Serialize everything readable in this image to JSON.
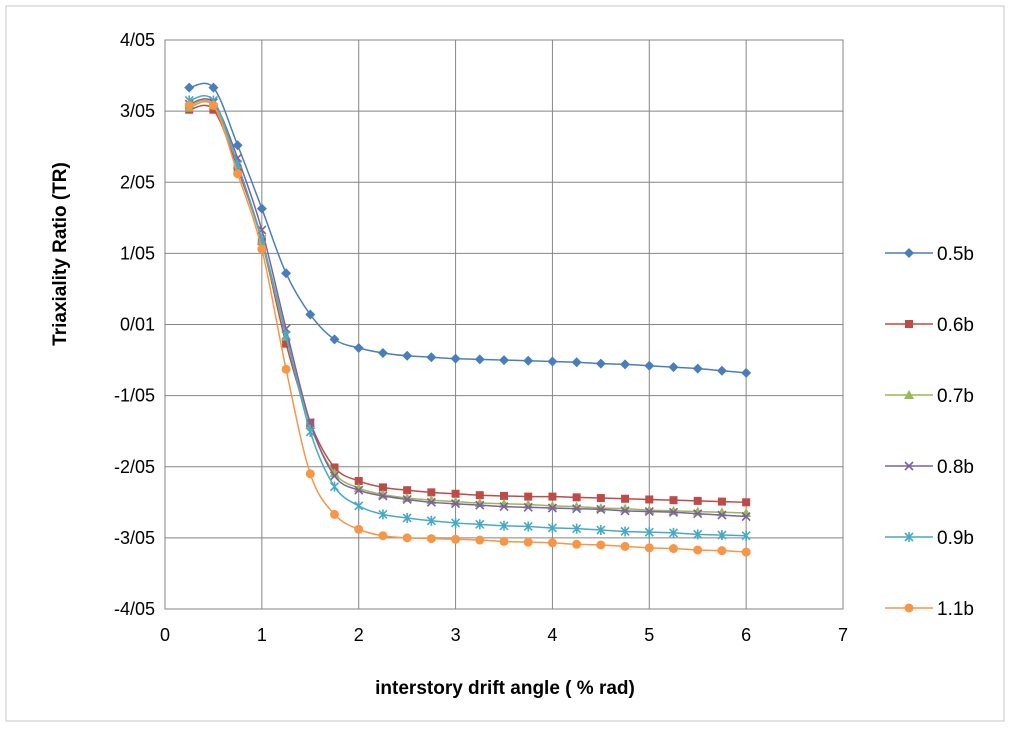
{
  "chart_data": {
    "type": "line",
    "title": "",
    "xlabel": "interstory drift angle ( % rad)",
    "ylabel": "Triaxiality Ratio (TR)",
    "xlim": [
      0,
      7
    ],
    "ylim": [
      -4,
      4
    ],
    "x_ticks": [
      0,
      1,
      2,
      3,
      4,
      5,
      6,
      7
    ],
    "y_ticks": [
      4,
      3,
      2,
      1,
      0,
      -1,
      -2,
      -3,
      -4
    ],
    "x_tick_labels": [
      "0",
      "1",
      "2",
      "3",
      "4",
      "5",
      "6",
      "7"
    ],
    "y_tick_labels": [
      "4/05",
      "3/05",
      "2/05",
      "1/05",
      "0/01",
      "-1/05",
      "-2/05",
      "-3/05",
      "-4/05"
    ],
    "grid": true,
    "legend_position": "right",
    "x": [
      0.25,
      0.5,
      0.75,
      1,
      1.25,
      1.5,
      1.75,
      2,
      2.25,
      2.5,
      2.75,
      3,
      3.25,
      3.5,
      3.75,
      4,
      4.25,
      4.5,
      4.75,
      5,
      5.25,
      5.5,
      5.75,
      6
    ],
    "series": [
      {
        "name": "0.5b",
        "color": "#4A7EBB",
        "marker": "diamond",
        "values": [
          3.33,
          3.33,
          2.52,
          1.63,
          0.72,
          0.14,
          -0.21,
          -0.33,
          -0.4,
          -0.44,
          -0.46,
          -0.48,
          -0.49,
          -0.5,
          -0.51,
          -0.52,
          -0.53,
          -0.55,
          -0.56,
          -0.58,
          -0.6,
          -0.62,
          -0.65,
          -0.68
        ]
      },
      {
        "name": "0.6b",
        "color": "#BE4B48",
        "marker": "square",
        "values": [
          3.02,
          3.02,
          2.19,
          1.17,
          -0.27,
          -1.38,
          -2.01,
          -2.2,
          -2.29,
          -2.33,
          -2.36,
          -2.38,
          -2.4,
          -2.41,
          -2.42,
          -2.42,
          -2.43,
          -2.44,
          -2.45,
          -2.46,
          -2.47,
          -2.48,
          -2.49,
          -2.5
        ]
      },
      {
        "name": "0.7b",
        "color": "#98B954",
        "marker": "triangle",
        "values": [
          3.05,
          3.08,
          2.25,
          1.18,
          -0.17,
          -1.41,
          -2.09,
          -2.3,
          -2.39,
          -2.44,
          -2.47,
          -2.49,
          -2.51,
          -2.52,
          -2.53,
          -2.55,
          -2.56,
          -2.58,
          -2.59,
          -2.61,
          -2.62,
          -2.63,
          -2.64,
          -2.65
        ]
      },
      {
        "name": "0.8b",
        "color": "#7D60A0",
        "marker": "x",
        "values": [
          3.1,
          3.12,
          2.34,
          1.33,
          -0.06,
          -1.38,
          -2.13,
          -2.33,
          -2.41,
          -2.46,
          -2.5,
          -2.52,
          -2.54,
          -2.56,
          -2.57,
          -2.58,
          -2.59,
          -2.6,
          -2.62,
          -2.63,
          -2.64,
          -2.66,
          -2.68,
          -2.7
        ]
      },
      {
        "name": "0.9b",
        "color": "#46AAC5",
        "marker": "asterisk",
        "values": [
          3.15,
          3.15,
          2.25,
          1.2,
          -0.15,
          -1.51,
          -2.28,
          -2.55,
          -2.67,
          -2.72,
          -2.76,
          -2.79,
          -2.81,
          -2.83,
          -2.84,
          -2.86,
          -2.87,
          -2.89,
          -2.91,
          -2.92,
          -2.93,
          -2.95,
          -2.96,
          -2.97
        ]
      },
      {
        "name": "1.1b",
        "color": "#F79646",
        "marker": "circle",
        "values": [
          3.08,
          3.08,
          2.12,
          1.06,
          -0.63,
          -2.1,
          -2.67,
          -2.88,
          -2.97,
          -3.0,
          -3.01,
          -3.02,
          -3.03,
          -3.05,
          -3.06,
          -3.07,
          -3.09,
          -3.1,
          -3.12,
          -3.14,
          -3.15,
          -3.17,
          -3.18,
          -3.2
        ]
      }
    ]
  }
}
